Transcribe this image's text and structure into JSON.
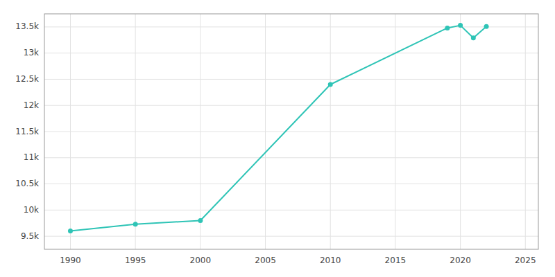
{
  "chart_data": {
    "type": "line",
    "x": [
      1990,
      1995,
      2000,
      2010,
      2019,
      2020,
      2021,
      2022
    ],
    "values": [
      9600,
      9730,
      9800,
      12400,
      13480,
      13530,
      13290,
      13510
    ],
    "color": "#2EC4B6",
    "marker": "circle",
    "xlim": [
      1988,
      2026
    ],
    "xticks": [
      1990,
      1995,
      2000,
      2005,
      2010,
      2015,
      2020,
      2025
    ],
    "ylim": [
      9250,
      13750
    ],
    "yticks": [
      {
        "value": 9500,
        "label": "9.5k"
      },
      {
        "value": 10000,
        "label": "10k"
      },
      {
        "value": 10500,
        "label": "10.5k"
      },
      {
        "value": 11000,
        "label": "11k"
      },
      {
        "value": 11500,
        "label": "11.5k"
      },
      {
        "value": 12000,
        "label": "12k"
      },
      {
        "value": 12500,
        "label": "12.5k"
      },
      {
        "value": 13000,
        "label": "13k"
      },
      {
        "value": 13500,
        "label": "13.5k"
      }
    ],
    "grid": true
  }
}
